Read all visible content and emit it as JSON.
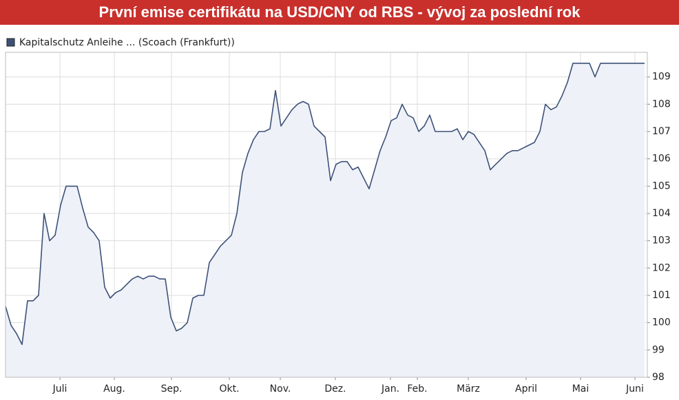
{
  "chart_data": {
    "type": "line",
    "title": "První emise certifikátu na USD/CNY od RBS - vývoj za poslední rok",
    "series": [
      {
        "name": "Kapitalschutz Anleihe ... (Scoach (Frankfurt))",
        "color": "#3d5178",
        "fill": "#eef1f8",
        "values": [
          100.6,
          99.9,
          99.6,
          99.2,
          100.8,
          100.8,
          101,
          104,
          103,
          103.2,
          104.3,
          105,
          105,
          105,
          104.2,
          103.5,
          103.3,
          103,
          101.3,
          100.9,
          101.1,
          101.2,
          101.4,
          101.6,
          101.7,
          101.6,
          101.7,
          101.7,
          101.6,
          101.6,
          100.2,
          99.7,
          99.8,
          100,
          100.9,
          101,
          101,
          102.2,
          102.5,
          102.8,
          103,
          103.2,
          104,
          105.5,
          106.2,
          106.7,
          107,
          107,
          107.1,
          108.5,
          107.2,
          107.5,
          107.8,
          108,
          108.1,
          108,
          107.2,
          107,
          106.8,
          105.2,
          105.8,
          105.9,
          105.9,
          105.6,
          105.7,
          105.3,
          104.9,
          105.6,
          106.3,
          106.8,
          107.4,
          107.5,
          108,
          107.6,
          107.5,
          107,
          107.2,
          107.6,
          107,
          107,
          107,
          107,
          107.1,
          106.7,
          107,
          106.9,
          106.6,
          106.3,
          105.6,
          105.8,
          106,
          106.2,
          106.3,
          106.3,
          106.4,
          106.5,
          106.6,
          107,
          108,
          107.8,
          107.9,
          108.3,
          108.8,
          109.5,
          109.5,
          109.5,
          109.5,
          109,
          109.5,
          109.5,
          109.5,
          109.5,
          109.5,
          109.5,
          109.5,
          109.5,
          109.5
        ]
      }
    ],
    "xlim": [
      0,
      116.5
    ],
    "xticks": [
      {
        "value": 9.875,
        "label": "Juli"
      },
      {
        "value": 19.75,
        "label": "Aug."
      },
      {
        "value": 30.125,
        "label": "Sep."
      },
      {
        "value": 40.625,
        "label": "Okt."
      },
      {
        "value": 49.875,
        "label": "Nov."
      },
      {
        "value": 59.875,
        "label": "Dez."
      },
      {
        "value": 69.875,
        "label": "Jan."
      },
      {
        "value": 74.75,
        "label": "Feb."
      },
      {
        "value": 84,
        "label": "März"
      },
      {
        "value": 94.5,
        "label": "April"
      },
      {
        "value": 104.375,
        "label": "Mai"
      },
      {
        "value": 114.25,
        "label": "Juni"
      }
    ],
    "ylim": [
      98,
      109.9
    ],
    "yticks": [
      98,
      99,
      100,
      101,
      102,
      103,
      104,
      105,
      106,
      107,
      108,
      109
    ],
    "grid": true
  }
}
